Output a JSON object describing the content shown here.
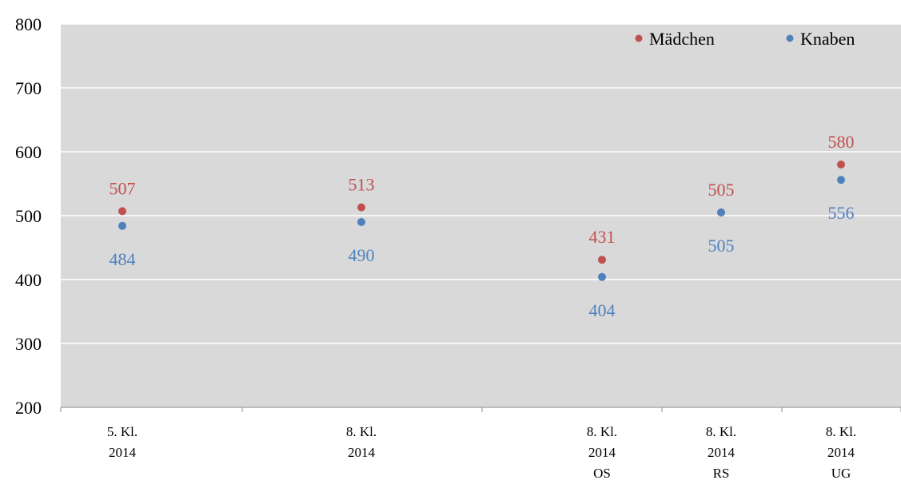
{
  "chart_data": {
    "type": "scatter",
    "title": "",
    "xlabel": "",
    "ylabel": "",
    "ylim": [
      200,
      800
    ],
    "yticks": [
      200,
      300,
      400,
      500,
      600,
      700,
      800
    ],
    "grid": "horizontal",
    "legend_position": "top-right",
    "background": "#d9d9d9",
    "categories": [
      [
        "5. Kl.",
        "2014"
      ],
      [
        "8. Kl.",
        "2014"
      ],
      [
        "8. Kl.",
        "2014",
        "OS"
      ],
      [
        "8. Kl.",
        "2014",
        "RS"
      ],
      [
        "8. Kl.",
        "2014",
        "UG"
      ]
    ],
    "series": [
      {
        "name": "Mädchen",
        "color": "#c0504d",
        "values": [
          507,
          513,
          431,
          505,
          580
        ]
      },
      {
        "name": "Knaben",
        "color": "#4f81bd",
        "values": [
          484,
          490,
          404,
          505,
          556
        ]
      }
    ]
  }
}
